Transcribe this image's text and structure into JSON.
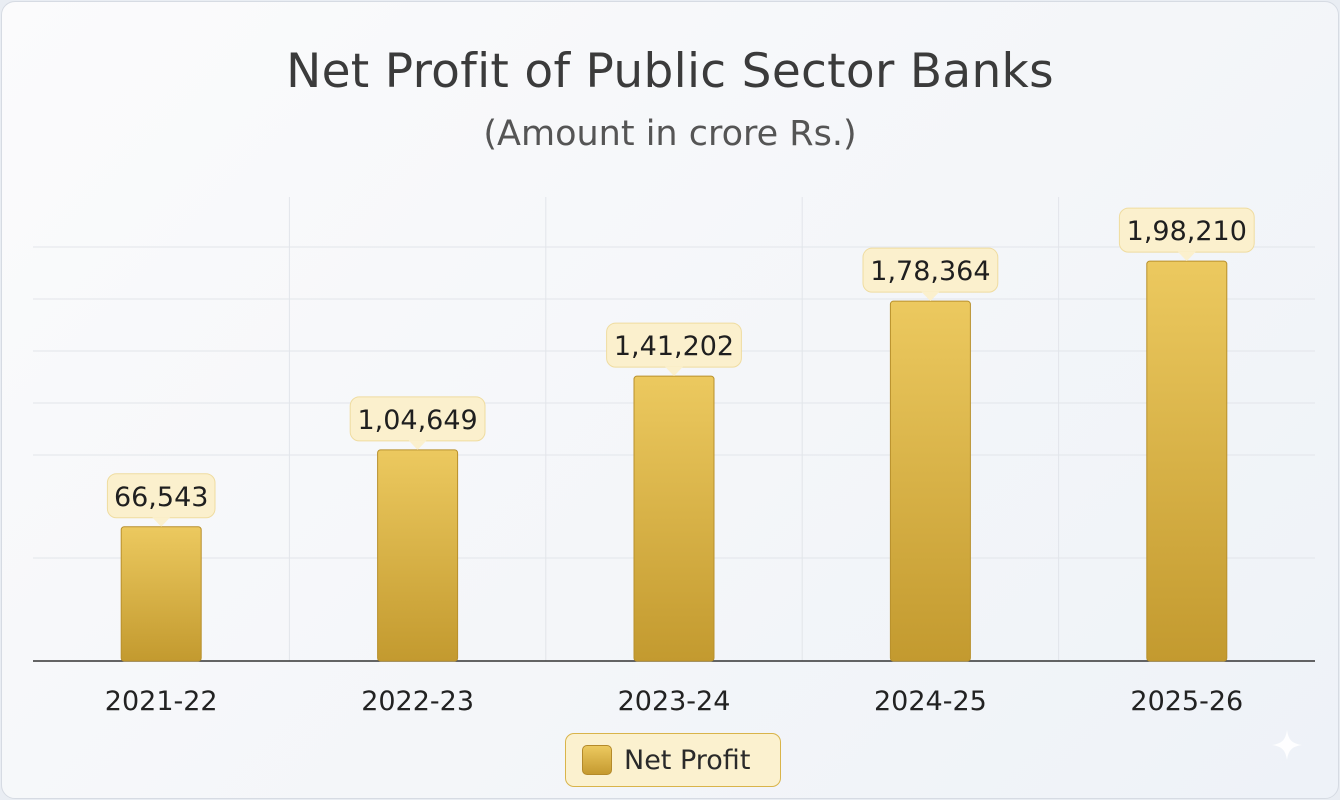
{
  "chart_data": {
    "type": "bar",
    "title": "Net Profit of Public Sector Banks",
    "subtitle": "(Amount in crore Rs.)",
    "categories": [
      "2021-22",
      "2022-23",
      "2023-24",
      "2024-25",
      "2025-26"
    ],
    "series": [
      {
        "name": "Net Profit",
        "values": [
          66543,
          104649,
          141202,
          178364,
          198210
        ],
        "labels": [
          "66,543",
          "1,04,649",
          "1,41,202",
          "1,78,364",
          "1,98,210"
        ]
      }
    ],
    "ylim": [
      0,
      230000
    ],
    "grid": true,
    "legend_position": "bottom-center",
    "colors": {
      "bar_top": "#ecc95f",
      "bar_bottom": "#c39a2f",
      "label_bg": "#fbf0cd"
    }
  },
  "decor": {
    "corner_icon": "sparkle-icon"
  }
}
